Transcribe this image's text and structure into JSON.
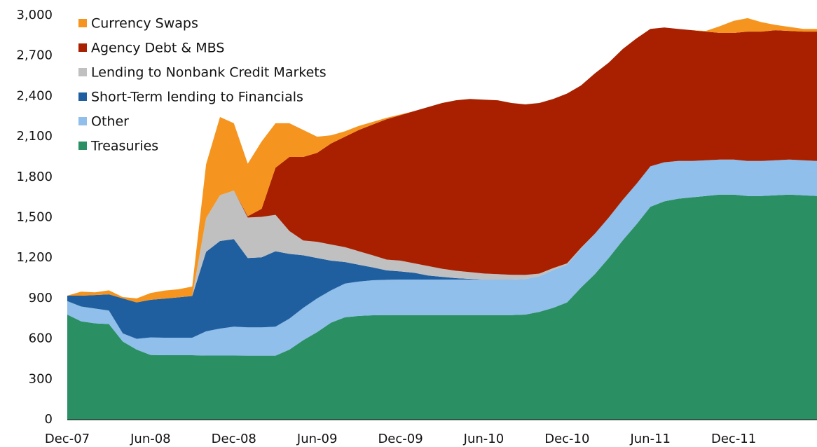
{
  "chart_data": {
    "type": "stacked_area",
    "categories": [
      "Dec-07",
      null,
      null,
      null,
      null,
      null,
      "Jun-08",
      null,
      null,
      null,
      null,
      null,
      "Dec-08",
      null,
      null,
      null,
      null,
      null,
      "Jun-09",
      null,
      null,
      null,
      null,
      null,
      "Dec-09",
      null,
      null,
      null,
      null,
      null,
      "Jun-10",
      null,
      null,
      null,
      null,
      null,
      "Dec-10",
      null,
      null,
      null,
      null,
      null,
      "Jun-11",
      null,
      null,
      null,
      null,
      null,
      "Dec-11",
      null,
      null,
      null,
      null,
      null,
      null
    ],
    "ylim": [
      0,
      3000
    ],
    "yticks": [
      0,
      300,
      600,
      900,
      {
        "value": 1200,
        "label": "1,200"
      },
      {
        "value": 1500,
        "label": "1,500"
      },
      {
        "value": 1800,
        "label": "1,800"
      },
      {
        "value": 2100,
        "label": "2,100"
      },
      {
        "value": 2400,
        "label": "2,400"
      },
      {
        "value": 2700,
        "label": "2,700"
      },
      {
        "value": 3000,
        "label": "3,000"
      }
    ],
    "grid": false,
    "legend": "upper left",
    "series": [
      {
        "name": "Treasuries",
        "color": "#2a8f63",
        "values": [
          780,
          730,
          715,
          710,
          580,
          520,
          480,
          478,
          478,
          478,
          476,
          476,
          476,
          475,
          475,
          475,
          520,
          590,
          650,
          720,
          760,
          770,
          775,
          776,
          776,
          776,
          776,
          776,
          776,
          776,
          776,
          776,
          776,
          780,
          800,
          830,
          870,
          980,
          1080,
          1200,
          1330,
          1450,
          1580,
          1620,
          1640,
          1650,
          1660,
          1670,
          1670,
          1660,
          1660,
          1665,
          1670,
          1665,
          1660
        ]
      },
      {
        "name": "Other",
        "color": "#8fbfea",
        "values": [
          100,
          110,
          110,
          100,
          60,
          80,
          130,
          130,
          130,
          130,
          180,
          200,
          214,
          210,
          210,
          215,
          230,
          240,
          250,
          240,
          250,
          255,
          260,
          262,
          264,
          264,
          264,
          264,
          264,
          264,
          264,
          264,
          264,
          264,
          264,
          280,
          280,
          290,
          300,
          300,
          300,
          300,
          300,
          290,
          280,
          270,
          265,
          260,
          260,
          260,
          260,
          260,
          260,
          260,
          260
        ]
      },
      {
        "name": "Short-Term lending to Financials",
        "color": "#1f5fa0",
        "values": [
          40,
          80,
          100,
          120,
          260,
          270,
          280,
          290,
          300,
          310,
          590,
          650,
          650,
          515,
          520,
          560,
          480,
          390,
          300,
          220,
          160,
          125,
          95,
          70,
          60,
          50,
          30,
          20,
          10,
          5,
          0,
          0,
          0,
          0,
          0,
          0,
          0,
          0,
          0,
          0,
          0,
          0,
          0,
          0,
          0,
          0,
          0,
          0,
          0,
          0,
          0,
          0,
          0,
          0,
          0
        ]
      },
      {
        "name": "Lending to Nonbank Credit Markets",
        "color": "#c0c0c0",
        "values": [
          0,
          0,
          0,
          0,
          0,
          0,
          0,
          0,
          0,
          0,
          250,
          340,
          360,
          300,
          300,
          270,
          170,
          110,
          120,
          120,
          110,
          100,
          90,
          80,
          80,
          70,
          70,
          60,
          55,
          50,
          45,
          40,
          35,
          30,
          20,
          15,
          10,
          5,
          0,
          0,
          0,
          0,
          0,
          0,
          0,
          0,
          0,
          0,
          0,
          0,
          0,
          0,
          0,
          0,
          0
        ]
      },
      {
        "name": "Agency Debt & MBS",
        "color": "#a82000",
        "values": [
          0,
          0,
          0,
          0,
          0,
          0,
          0,
          0,
          0,
          0,
          0,
          0,
          0,
          10,
          60,
          350,
          550,
          620,
          660,
          750,
          820,
          900,
          970,
          1042,
          1080,
          1130,
          1180,
          1230,
          1265,
          1285,
          1290,
          1290,
          1275,
          1266,
          1266,
          1255,
          1260,
          1205,
          1190,
          1150,
          1120,
          1080,
          1020,
          1000,
          980,
          970,
          955,
          940,
          940,
          960,
          960,
          965,
          955,
          955,
          960
        ]
      },
      {
        "name": "Currency Swaps",
        "color": "#f5951f",
        "values": [
          0,
          30,
          20,
          30,
          10,
          30,
          50,
          60,
          60,
          70,
          400,
          580,
          500,
          390,
          500,
          330,
          250,
          200,
          120,
          60,
          40,
          30,
          20,
          10,
          5,
          0,
          0,
          0,
          0,
          0,
          0,
          0,
          0,
          0,
          0,
          0,
          0,
          0,
          0,
          0,
          0,
          0,
          0,
          0,
          0,
          0,
          5,
          50,
          90,
          100,
          70,
          40,
          30,
          20,
          20
        ]
      }
    ]
  }
}
